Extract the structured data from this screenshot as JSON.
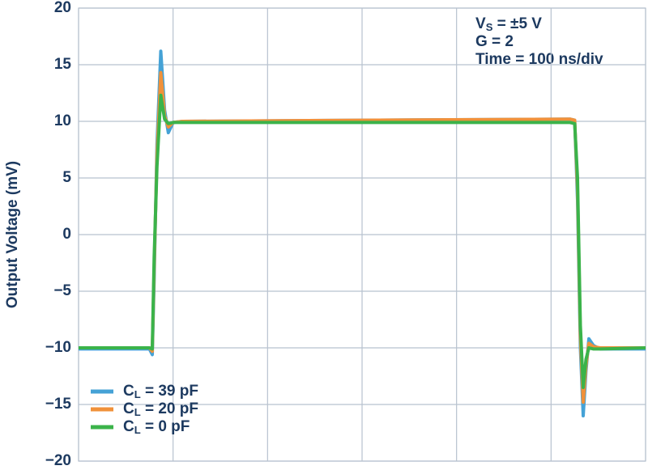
{
  "chart_data": {
    "type": "line",
    "ylabel": "Output Voltage (mV)",
    "annotations": [
      "VS = ±5 V",
      "G = 2",
      "Time = 100 ns/div"
    ],
    "xlim": [
      0,
      600
    ],
    "xticks": [
      0,
      100,
      200,
      300,
      400,
      500,
      600
    ],
    "show_xtick_labels": false,
    "ylim": [
      -20,
      20
    ],
    "yticks": [
      {
        "value": -20,
        "label": "−20"
      },
      {
        "value": -15,
        "label": "−15"
      },
      {
        "value": -10,
        "label": "−10"
      },
      {
        "value": -5,
        "label": "−5"
      },
      0,
      5,
      10,
      15,
      20
    ],
    "grid": true,
    "legend": "lower left",
    "x": [
      0,
      75,
      78,
      80,
      83,
      87,
      91,
      95,
      100,
      110,
      300,
      520,
      525,
      528,
      531,
      534,
      537,
      540,
      545,
      552,
      600
    ],
    "series": [
      {
        "name": "CL = 39 pF",
        "color": "#45a2d6",
        "values": [
          -10.1,
          -10.1,
          -10.6,
          -4,
          8,
          16.2,
          11,
          9,
          9.9,
          10,
          10.1,
          10.2,
          10.1,
          3,
          -10,
          -16,
          -12,
          -9.2,
          -9.8,
          -10.1,
          -10.1
        ]
      },
      {
        "name": "CL = 20 pF",
        "color": "#f0913a",
        "values": [
          -10,
          -10,
          -10.3,
          -3,
          7,
          14.3,
          10.5,
          9.5,
          9.9,
          10,
          10.1,
          10.2,
          10.1,
          4,
          -9,
          -14.8,
          -11.5,
          -9.6,
          -9.9,
          -10,
          -10
        ]
      },
      {
        "name": "CL = 0 pF",
        "color": "#3bb34a",
        "values": [
          -10,
          -10,
          -10.1,
          -2,
          6,
          12.3,
          10.2,
          9.8,
          9.9,
          9.9,
          9.9,
          9.9,
          9.8,
          5,
          -8,
          -13.5,
          -11,
          -10,
          -10.1,
          -10.1,
          -10
        ]
      }
    ]
  }
}
